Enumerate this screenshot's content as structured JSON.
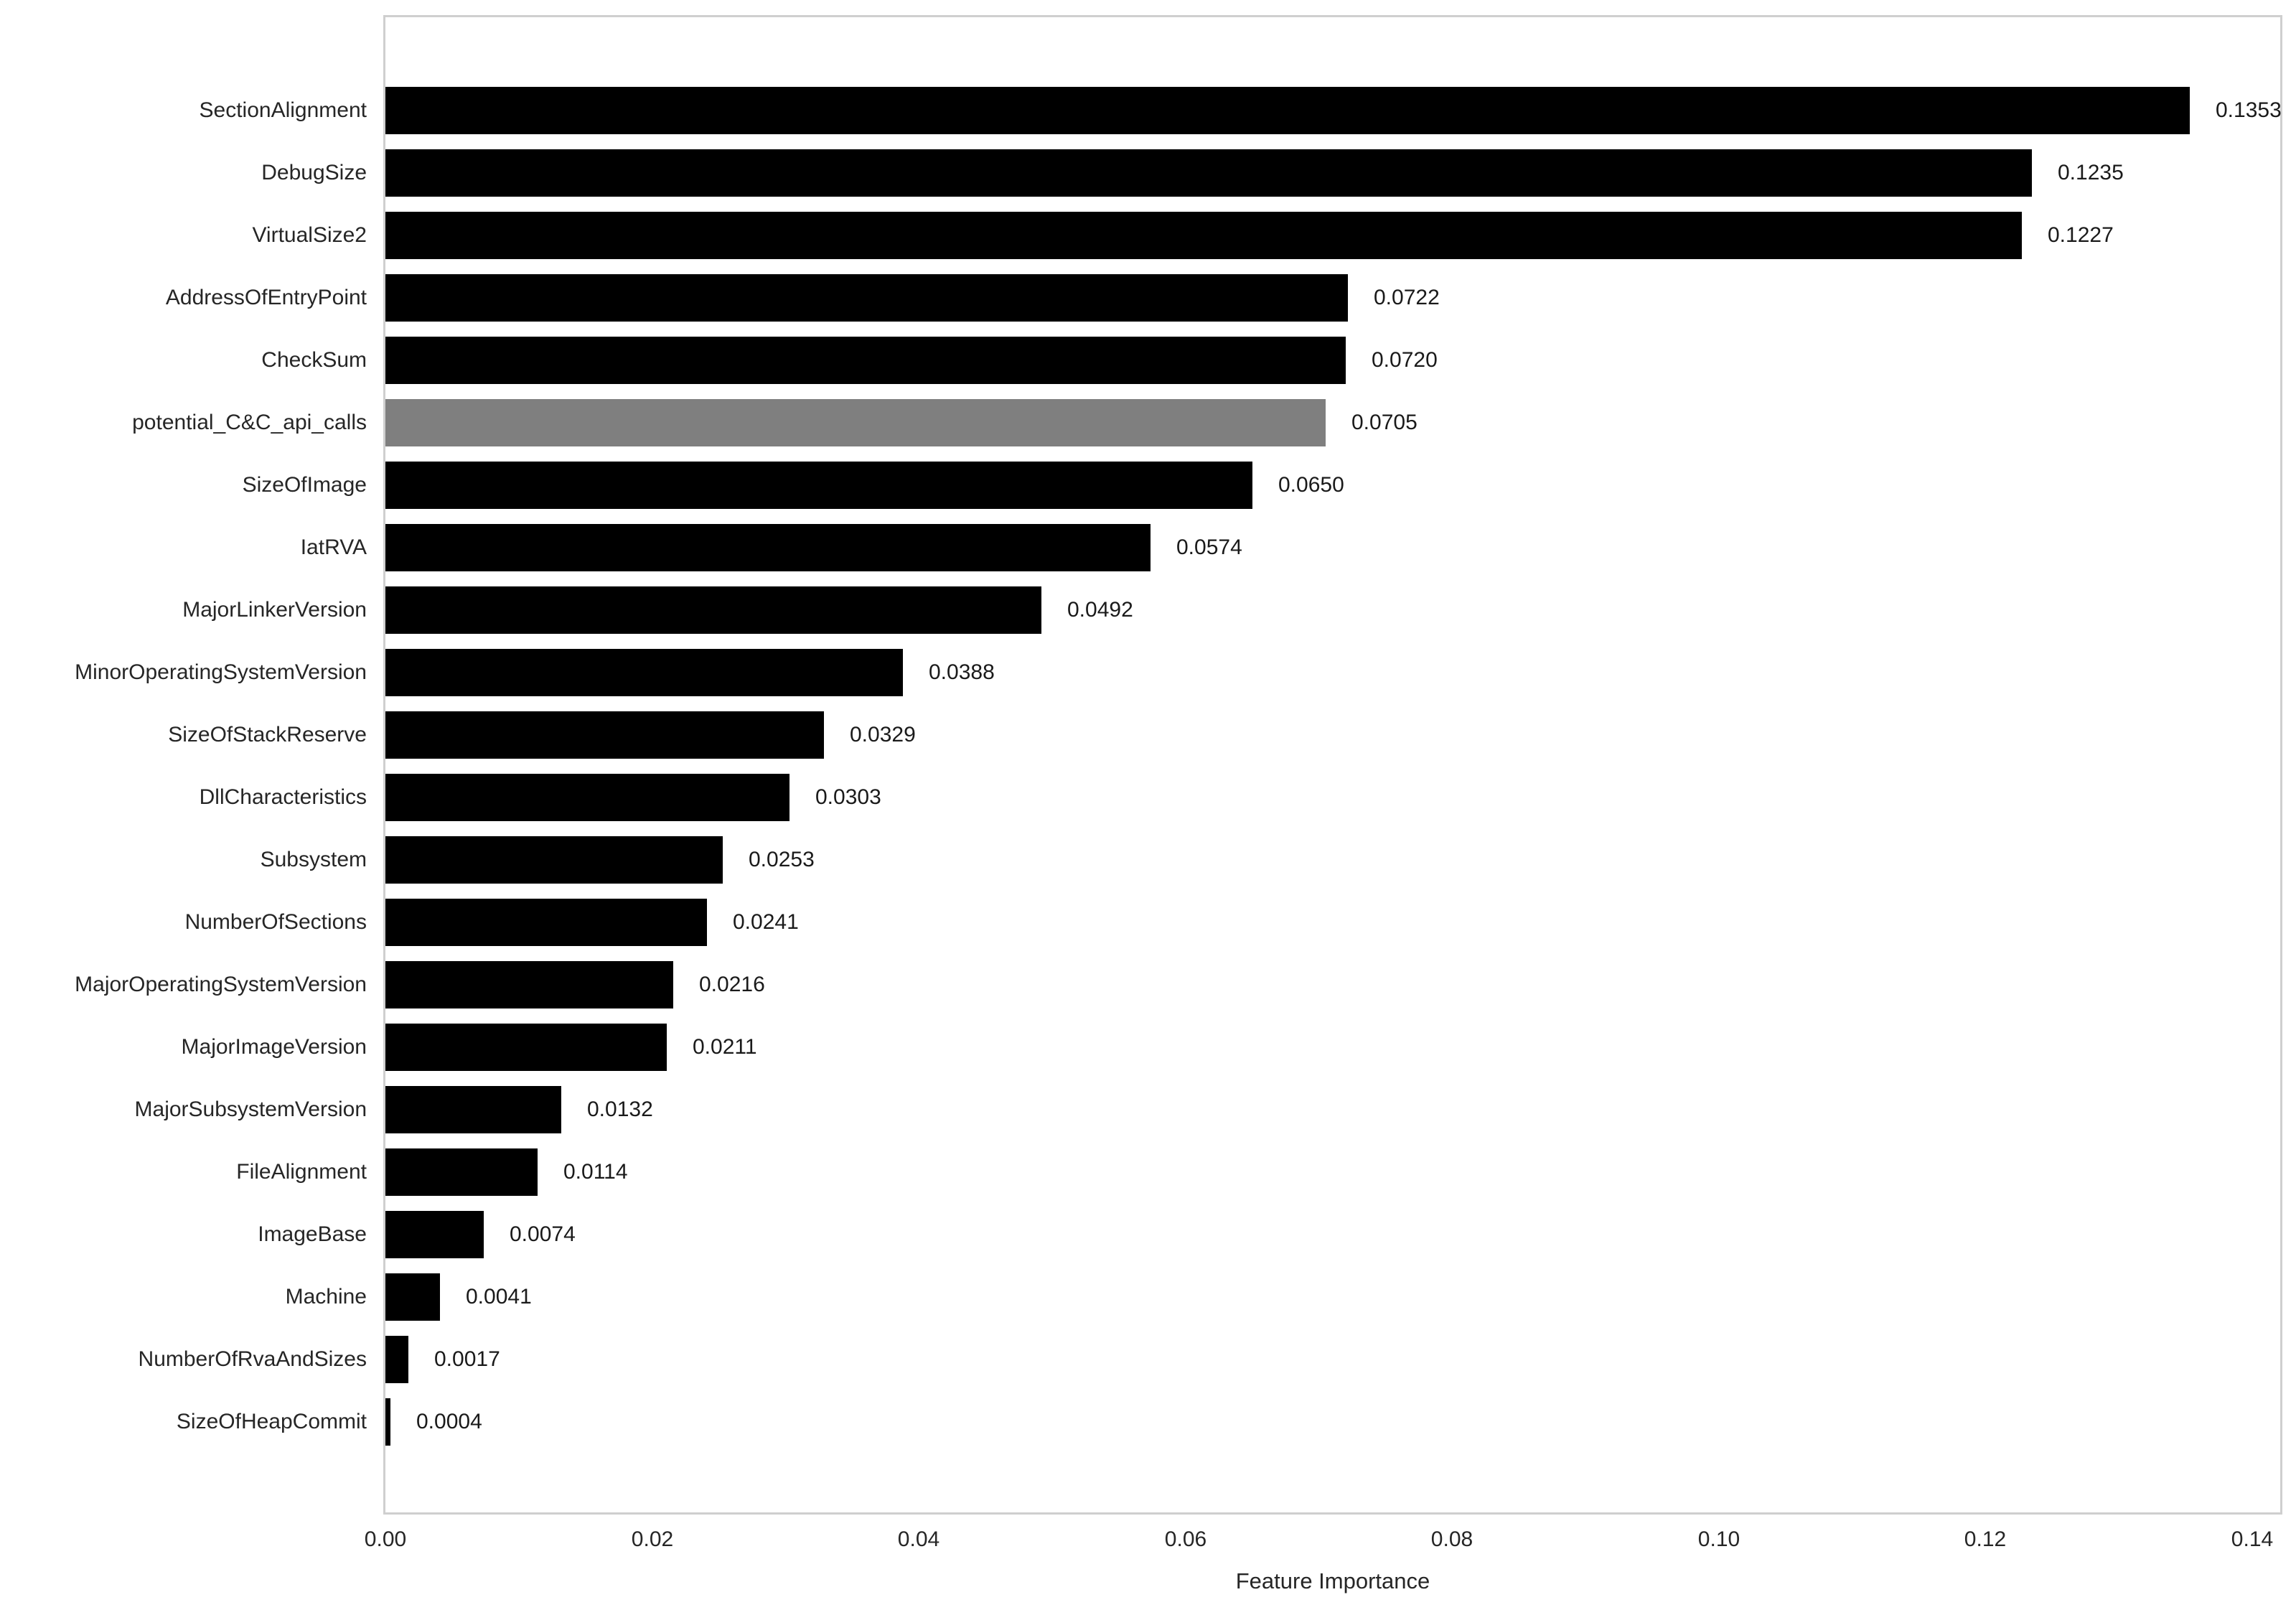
{
  "chart_data": {
    "type": "bar",
    "orientation": "horizontal",
    "title": "",
    "xlabel": "Feature Importance",
    "ylabel": "",
    "grid": false,
    "legend_position": "none",
    "xlim": [
      0,
      0.1421
    ],
    "x_tick_values": [
      0.0,
      0.02,
      0.04,
      0.06,
      0.08,
      0.1,
      0.12,
      0.14
    ],
    "x_tick_labels": [
      "0.00",
      "0.02",
      "0.04",
      "0.06",
      "0.08",
      "0.10",
      "0.12",
      "0.14"
    ],
    "categories": [
      "SectionAlignment",
      "DebugSize",
      "VirtualSize2",
      "AddressOfEntryPoint",
      "CheckSum",
      "potential_C&C_api_calls",
      "SizeOfImage",
      "IatRVA",
      "MajorLinkerVersion",
      "MinorOperatingSystemVersion",
      "SizeOfStackReserve",
      "DllCharacteristics",
      "Subsystem",
      "NumberOfSections",
      "MajorOperatingSystemVersion",
      "MajorImageVersion",
      "MajorSubsystemVersion",
      "FileAlignment",
      "ImageBase",
      "Machine",
      "NumberOfRvaAndSizes",
      "SizeOfHeapCommit"
    ],
    "values": [
      0.1353,
      0.1235,
      0.1227,
      0.0722,
      0.072,
      0.0705,
      0.065,
      0.0574,
      0.0492,
      0.0388,
      0.0329,
      0.0303,
      0.0253,
      0.0241,
      0.0216,
      0.0211,
      0.0132,
      0.0114,
      0.0074,
      0.0041,
      0.0017,
      0.0004
    ],
    "value_labels": [
      "0.1353",
      "0.1235",
      "0.1227",
      "0.0722",
      "0.0720",
      "0.0705",
      "0.0650",
      "0.0574",
      "0.0492",
      "0.0388",
      "0.0329",
      "0.0303",
      "0.0253",
      "0.0241",
      "0.0216",
      "0.0211",
      "0.0132",
      "0.0114",
      "0.0074",
      "0.0041",
      "0.0017",
      "0.0004"
    ],
    "highlight_index": 5,
    "colors": {
      "bar": "#000000",
      "highlight_bar": "#7f7f7f",
      "tick_text": "#262626",
      "value_text": "#1a1a1a",
      "spine": "#cfcfcf",
      "background": "#ffffff"
    }
  }
}
